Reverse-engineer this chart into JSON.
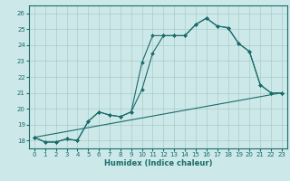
{
  "title": "",
  "xlabel": "Humidex (Indice chaleur)",
  "xlim": [
    -0.5,
    23.5
  ],
  "ylim": [
    17.5,
    26.5
  ],
  "yticks": [
    18,
    19,
    20,
    21,
    22,
    23,
    24,
    25,
    26
  ],
  "xticks": [
    0,
    1,
    2,
    3,
    4,
    5,
    6,
    7,
    8,
    9,
    10,
    11,
    12,
    13,
    14,
    15,
    16,
    17,
    18,
    19,
    20,
    21,
    22,
    23
  ],
  "bg_color": "#cde8e8",
  "line_color": "#1a6b6b",
  "grid_color": "#aacccc",
  "lines": [
    {
      "x": [
        0,
        1,
        2,
        3,
        4,
        5,
        6,
        7,
        8,
        9,
        10,
        11,
        12,
        13,
        14,
        15,
        16,
        17,
        18,
        19,
        20,
        21,
        22,
        23
      ],
      "y": [
        18.2,
        17.9,
        17.9,
        18.1,
        18.0,
        19.2,
        19.8,
        19.6,
        19.5,
        19.8,
        22.9,
        24.6,
        24.6,
        24.6,
        24.6,
        25.3,
        25.7,
        25.2,
        25.1,
        24.1,
        23.6,
        21.5,
        21.0,
        21.0
      ]
    },
    {
      "x": [
        0,
        1,
        2,
        3,
        4,
        5,
        6,
        7,
        8,
        9,
        10,
        11,
        12,
        13,
        14,
        15,
        16,
        17,
        18,
        19,
        20,
        21,
        22,
        23
      ],
      "y": [
        18.2,
        17.9,
        17.9,
        18.1,
        18.0,
        19.2,
        19.8,
        19.6,
        19.5,
        19.8,
        21.2,
        23.5,
        24.6,
        24.6,
        24.6,
        25.3,
        25.7,
        25.2,
        25.1,
        24.1,
        23.6,
        21.5,
        21.0,
        21.0
      ]
    },
    {
      "x": [
        0,
        23
      ],
      "y": [
        18.2,
        21.0
      ]
    }
  ]
}
